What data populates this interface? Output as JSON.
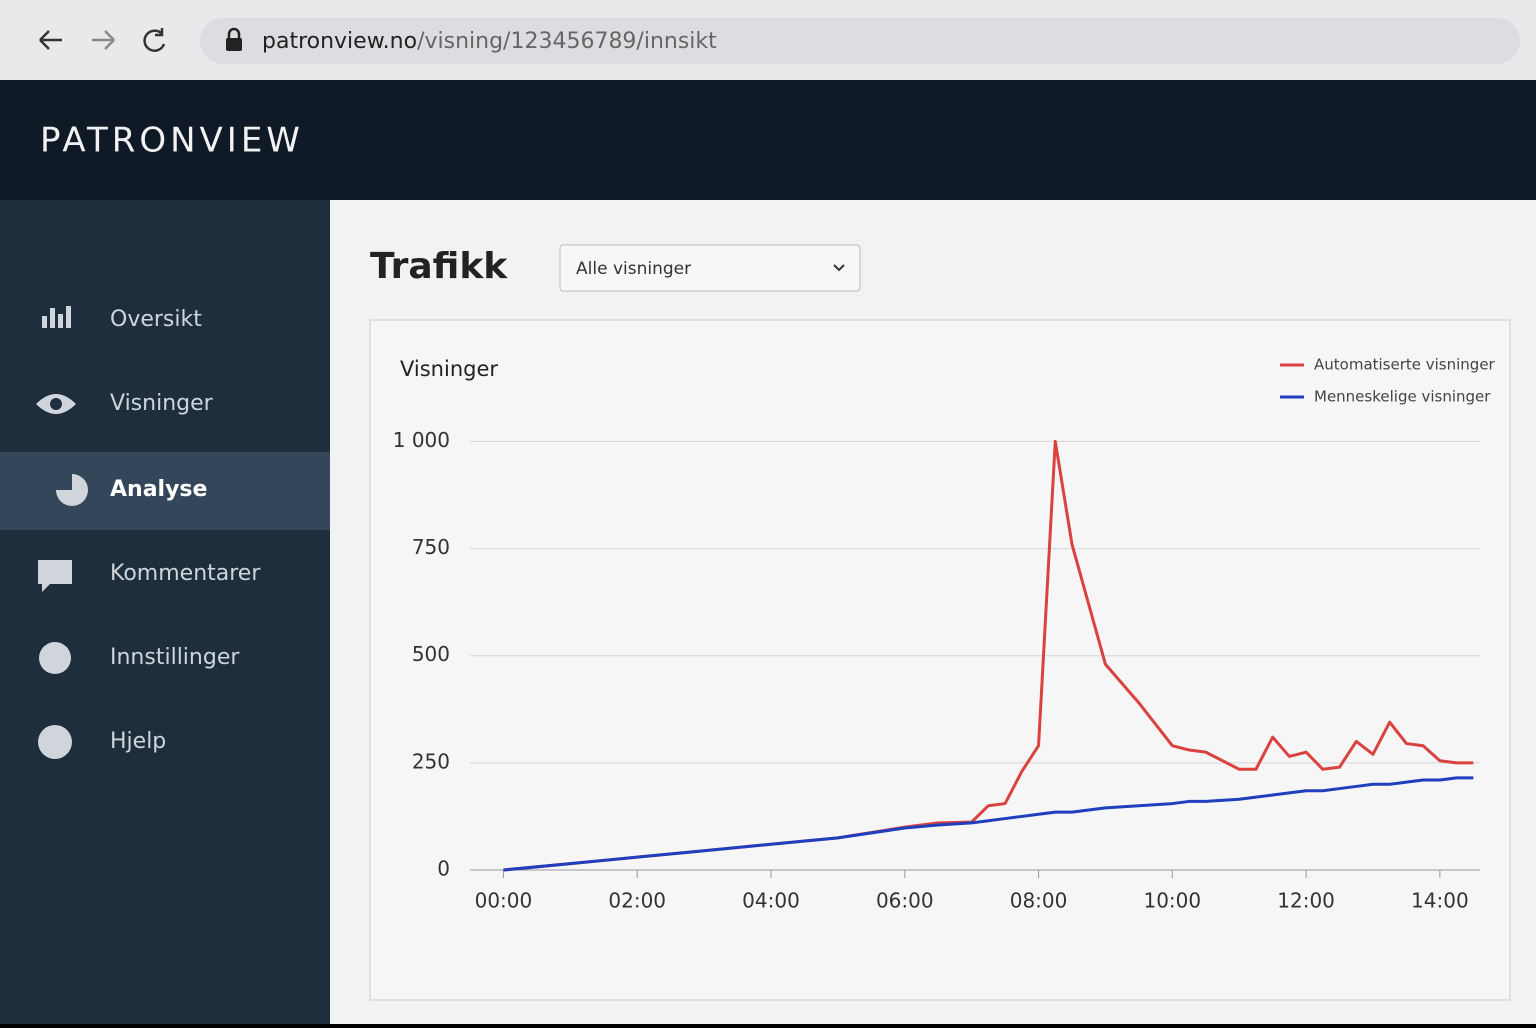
{
  "browser": {
    "domain": "patronview.no",
    "path": "/visning/123456789/innsikt"
  },
  "header": {
    "brand": "PATRONVIEW"
  },
  "nav": {
    "items": [
      "Oversikt",
      "Visninger",
      "Analyse",
      "Kommentarer",
      "Innstillinger",
      "Hjelp"
    ],
    "active": 2
  },
  "page": {
    "title": "Trafikk",
    "dropdown": "Alle visninger"
  },
  "chart_data": {
    "type": "line",
    "title": "Visninger",
    "x": [
      0,
      1,
      2,
      3,
      4,
      5,
      6,
      6.5,
      7,
      7.25,
      7.5,
      7.75,
      8,
      8.25,
      8.5,
      9,
      9.5,
      10,
      10.25,
      10.5,
      11,
      11.25,
      11.5,
      11.75,
      12,
      12.25,
      12.5,
      12.75,
      13,
      13.25,
      13.5,
      13.75,
      14,
      14.25,
      14.5
    ],
    "series": [
      {
        "name": "Automatiserte visninger",
        "color": "#d9423f",
        "values": [
          0,
          15,
          30,
          45,
          60,
          75,
          100,
          110,
          112,
          150,
          155,
          230,
          290,
          1000,
          760,
          480,
          390,
          290,
          280,
          275,
          235,
          235,
          310,
          265,
          275,
          235,
          240,
          300,
          270,
          345,
          295,
          290,
          255,
          250,
          250
        ]
      },
      {
        "name": "Menneskelige visninger",
        "color": "#1f3fbf",
        "values": [
          0,
          15,
          30,
          45,
          60,
          75,
          98,
          105,
          110,
          115,
          120,
          125,
          130,
          135,
          135,
          145,
          150,
          155,
          160,
          160,
          165,
          170,
          175,
          180,
          185,
          185,
          190,
          195,
          200,
          200,
          205,
          210,
          210,
          215,
          215
        ]
      }
    ],
    "xlim": [
      -0.5,
      14.6
    ],
    "xticks": [
      {
        "value": 0,
        "label": "00:00"
      },
      {
        "value": 2,
        "label": "02:00"
      },
      {
        "value": 4,
        "label": "04:00"
      },
      {
        "value": 6,
        "label": "06:00"
      },
      {
        "value": 8,
        "label": "08:00"
      },
      {
        "value": 10,
        "label": "10:00"
      },
      {
        "value": 12,
        "label": "12:00"
      },
      {
        "value": 14,
        "label": "14:00"
      }
    ],
    "ylim": [
      0,
      1050
    ],
    "yticks": [
      0,
      250,
      500,
      750,
      {
        "value": 1000,
        "label": "1 000"
      }
    ],
    "grid": true,
    "legend": "top-right"
  }
}
